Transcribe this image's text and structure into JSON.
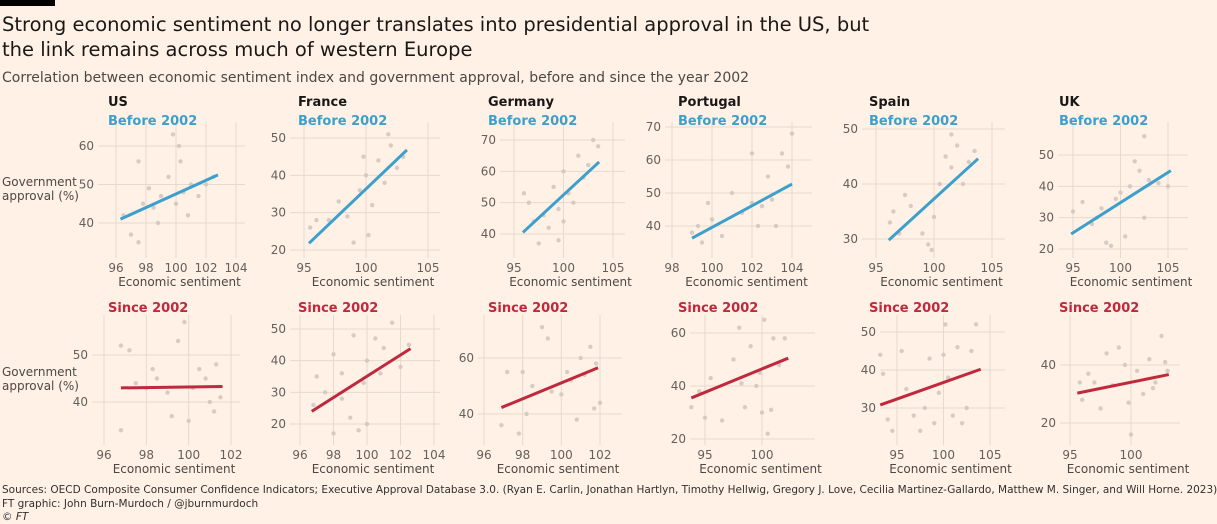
{
  "header": {
    "title": "Strong economic sentiment no longer translates into presidential approval in the US, but the link remains across much of western Europe",
    "subtitle": "Correlation between economic sentiment index and government approval, before and since the year 2002"
  },
  "footer": {
    "sources": "Sources: OECD Composite Consumer Confidence Indicators; Executive Approval Database 3.0. (Ryan E. Carlin, Jonathan Hartlyn, Timothy Hellwig, Gregory J. Love, Cecilia Martinez-Gallardo, Matthew M. Singer, and Will Horne. 2023)",
    "credit": "FT graphic: John Burn-Murdoch / @jburnmurdoch",
    "copyright": "© FT"
  },
  "colors": {
    "before": "#3d9fcc",
    "since": "#c0283d",
    "points": "#cfc6c0",
    "background": "#fff1e5"
  },
  "chart_data": [
    {
      "type": "scatter",
      "country": "US",
      "period": "Before 2002",
      "xlabel": "Economic sentiment",
      "ylabel": "Government approval (%)",
      "xticks": [
        96,
        98,
        100,
        102,
        104
      ],
      "yticks": [
        40,
        50,
        60
      ],
      "trend": {
        "x": [
          96.3,
          102.8
        ],
        "y": [
          41,
          52.5
        ]
      },
      "points": [
        [
          96.5,
          42
        ],
        [
          97,
          37
        ],
        [
          97.5,
          35
        ],
        [
          97.8,
          45
        ],
        [
          98.2,
          49
        ],
        [
          98.5,
          44
        ],
        [
          99,
          47
        ],
        [
          99.5,
          52
        ],
        [
          99.8,
          63
        ],
        [
          100,
          45
        ],
        [
          100.3,
          56
        ],
        [
          100.5,
          48
        ],
        [
          100.8,
          42
        ],
        [
          101,
          50
        ],
        [
          101.5,
          47
        ],
        [
          102,
          50
        ],
        [
          102.5,
          52
        ],
        [
          98.8,
          40
        ],
        [
          97.5,
          56
        ],
        [
          100.2,
          60
        ]
      ]
    },
    {
      "type": "scatter",
      "country": "France",
      "period": "Before 2002",
      "xlabel": "Economic sentiment",
      "xticks": [
        95,
        100,
        105
      ],
      "yticks": [
        20,
        30,
        40,
        50
      ],
      "trend": {
        "x": [
          95.4,
          103.3
        ],
        "y": [
          21.8,
          46.8
        ]
      },
      "points": [
        [
          95.5,
          26
        ],
        [
          96,
          28
        ],
        [
          97,
          28
        ],
        [
          97.8,
          33
        ],
        [
          98.5,
          29
        ],
        [
          99,
          22
        ],
        [
          99.5,
          36
        ],
        [
          99.8,
          45
        ],
        [
          100,
          40
        ],
        [
          100.5,
          32
        ],
        [
          101,
          44
        ],
        [
          101.5,
          38
        ],
        [
          102,
          48
        ],
        [
          102.5,
          42
        ],
        [
          103,
          45
        ],
        [
          100.2,
          24
        ],
        [
          101.8,
          51
        ]
      ]
    },
    {
      "type": "scatter",
      "country": "Germany",
      "period": "Before 2002",
      "xlabel": "Economic sentiment",
      "xticks": [
        95,
        100,
        105
      ],
      "yticks": [
        40,
        50,
        60,
        70
      ],
      "trend": {
        "x": [
          95.9,
          103.6
        ],
        "y": [
          40.5,
          63
        ]
      },
      "points": [
        [
          96,
          53
        ],
        [
          96.5,
          50
        ],
        [
          97,
          44
        ],
        [
          97.5,
          37
        ],
        [
          98,
          46
        ],
        [
          98.5,
          42
        ],
        [
          99,
          55
        ],
        [
          99.5,
          48
        ],
        [
          100,
          60
        ],
        [
          100,
          44
        ],
        [
          100.5,
          53
        ],
        [
          101,
          50
        ],
        [
          101.5,
          65
        ],
        [
          102,
          58
        ],
        [
          102.5,
          62
        ],
        [
          103,
          70
        ],
        [
          103.5,
          68
        ],
        [
          99.5,
          38
        ]
      ]
    },
    {
      "type": "scatter",
      "country": "Portugal",
      "period": "Before 2002",
      "xlabel": "Economic sentiment",
      "xticks": [
        98,
        100,
        102,
        104
      ],
      "yticks": [
        40,
        50,
        60,
        70
      ],
      "trend": {
        "x": [
          99,
          104
        ],
        "y": [
          36.3,
          52.7
        ]
      },
      "points": [
        [
          99,
          38
        ],
        [
          99.3,
          40
        ],
        [
          99.5,
          35
        ],
        [
          99.8,
          47
        ],
        [
          100,
          42
        ],
        [
          100.5,
          37
        ],
        [
          101,
          50
        ],
        [
          101.5,
          44
        ],
        [
          102,
          47
        ],
        [
          102.3,
          40
        ],
        [
          102.5,
          46
        ],
        [
          102.8,
          55
        ],
        [
          103,
          48
        ],
        [
          103.5,
          62
        ],
        [
          103.8,
          58
        ],
        [
          104,
          68
        ],
        [
          102,
          62
        ],
        [
          103.2,
          40
        ]
      ]
    },
    {
      "type": "scatter",
      "country": "Spain",
      "period": "Before 2002",
      "xlabel": "Economic sentiment",
      "xticks": [
        95,
        100,
        105
      ],
      "yticks": [
        30,
        40,
        50
      ],
      "trend": {
        "x": [
          96.1,
          103.8
        ],
        "y": [
          29.8,
          44.6
        ]
      },
      "points": [
        [
          96.2,
          33
        ],
        [
          96.5,
          35
        ],
        [
          97,
          31
        ],
        [
          97.5,
          38
        ],
        [
          98,
          36
        ],
        [
          99,
          31
        ],
        [
          99.5,
          29
        ],
        [
          100,
          34
        ],
        [
          100.5,
          40
        ],
        [
          101,
          45
        ],
        [
          101.5,
          43
        ],
        [
          102,
          47
        ],
        [
          102.5,
          40
        ],
        [
          103,
          44
        ],
        [
          103.5,
          46
        ],
        [
          101.5,
          49
        ],
        [
          99.8,
          28
        ]
      ]
    },
    {
      "type": "scatter",
      "country": "UK",
      "period": "Before 2002",
      "xlabel": "Economic sentiment",
      "xticks": [
        95,
        100,
        105
      ],
      "yticks": [
        20,
        30,
        40,
        50
      ],
      "trend": {
        "x": [
          94.8,
          105.3
        ],
        "y": [
          24.8,
          45
        ]
      },
      "points": [
        [
          95,
          32
        ],
        [
          96,
          35
        ],
        [
          97,
          28
        ],
        [
          97.5,
          30
        ],
        [
          98,
          33
        ],
        [
          98.5,
          22
        ],
        [
          99,
          21
        ],
        [
          99.5,
          36
        ],
        [
          100,
          38
        ],
        [
          100.5,
          24
        ],
        [
          101,
          40
        ],
        [
          101.5,
          48
        ],
        [
          102,
          45
        ],
        [
          102.5,
          56
        ],
        [
          103,
          42
        ],
        [
          104,
          41
        ],
        [
          105,
          40
        ],
        [
          102.5,
          30
        ]
      ]
    },
    {
      "type": "scatter",
      "period": "Since 2002",
      "xlabel": "Economic sentiment",
      "ylabel": "Government approval (%)",
      "xticks": [
        96,
        98,
        100,
        102
      ],
      "yticks": [
        40,
        50
      ],
      "trend": {
        "x": [
          96.8,
          101.6
        ],
        "y": [
          43,
          43.3
        ]
      },
      "points": [
        [
          96.8,
          34
        ],
        [
          96.8,
          52
        ],
        [
          97.2,
          51
        ],
        [
          97.5,
          44
        ],
        [
          98,
          43
        ],
        [
          98.3,
          47
        ],
        [
          98.5,
          45
        ],
        [
          99,
          42
        ],
        [
          99.2,
          37
        ],
        [
          99.5,
          53
        ],
        [
          99.8,
          57
        ],
        [
          100,
          36
        ],
        [
          100.2,
          43
        ],
        [
          100.5,
          47
        ],
        [
          100.8,
          45
        ],
        [
          101,
          40
        ],
        [
          101.3,
          48
        ],
        [
          101.5,
          41
        ],
        [
          101.2,
          38
        ]
      ]
    },
    {
      "type": "scatter",
      "period": "Since 2002",
      "xlabel": "Economic sentiment",
      "xticks": [
        96,
        98,
        100,
        102,
        104
      ],
      "yticks": [
        20,
        30,
        40,
        50
      ],
      "trend": {
        "x": [
          96.7,
          102.6
        ],
        "y": [
          24,
          43.8
        ]
      },
      "points": [
        [
          96.8,
          26
        ],
        [
          97,
          35
        ],
        [
          97.5,
          30
        ],
        [
          98,
          17
        ],
        [
          98,
          42
        ],
        [
          98.5,
          28
        ],
        [
          99,
          22
        ],
        [
          99.2,
          48
        ],
        [
          99.5,
          18
        ],
        [
          99.8,
          33
        ],
        [
          100,
          40
        ],
        [
          100,
          20
        ],
        [
          100.5,
          47
        ],
        [
          100.8,
          36
        ],
        [
          101,
          44
        ],
        [
          101.5,
          52
        ],
        [
          102,
          38
        ],
        [
          102.5,
          45
        ],
        [
          98.5,
          36
        ]
      ]
    },
    {
      "type": "scatter",
      "period": "Since 2002",
      "xlabel": "Economic sentiment",
      "xticks": [
        96,
        98,
        100,
        102
      ],
      "yticks": [
        40,
        60
      ],
      "trend": {
        "x": [
          96.9,
          101.9
        ],
        "y": [
          42.3,
          56.5
        ]
      },
      "points": [
        [
          96.9,
          36
        ],
        [
          97.2,
          55
        ],
        [
          97.8,
          33
        ],
        [
          98,
          55
        ],
        [
          98.2,
          40
        ],
        [
          98.5,
          50
        ],
        [
          99,
          71
        ],
        [
          99.3,
          67
        ],
        [
          99.5,
          48
        ],
        [
          100,
          47
        ],
        [
          100.3,
          55
        ],
        [
          100.5,
          52
        ],
        [
          100.8,
          38
        ],
        [
          101,
          60
        ],
        [
          101.2,
          54
        ],
        [
          101.5,
          64
        ],
        [
          101.8,
          58
        ],
        [
          102,
          44
        ],
        [
          101.7,
          42
        ]
      ]
    },
    {
      "type": "scatter",
      "period": "Since 2002",
      "xlabel": "Economic sentiment",
      "xticks": [
        95,
        100
      ],
      "yticks": [
        20,
        40,
        60
      ],
      "trend": {
        "x": [
          93.8,
          102.3
        ],
        "y": [
          35.5,
          50.5
        ]
      },
      "points": [
        [
          93.8,
          32
        ],
        [
          94.5,
          38
        ],
        [
          95,
          28
        ],
        [
          95.5,
          43
        ],
        [
          96.5,
          27
        ],
        [
          97.5,
          50
        ],
        [
          98,
          62
        ],
        [
          98.2,
          41
        ],
        [
          98.5,
          32
        ],
        [
          99,
          55
        ],
        [
          99.5,
          40
        ],
        [
          99.8,
          45
        ],
        [
          100,
          30
        ],
        [
          100.2,
          65
        ],
        [
          100.5,
          22
        ],
        [
          101,
          58
        ],
        [
          101.5,
          48
        ],
        [
          102,
          58
        ],
        [
          100.8,
          31
        ]
      ]
    },
    {
      "type": "scatter",
      "period": "Since 2002",
      "xlabel": "Economic sentiment",
      "xticks": [
        95,
        100,
        105
      ],
      "yticks": [
        30,
        40,
        50
      ],
      "trend": {
        "x": [
          93.2,
          104
        ],
        "y": [
          30.8,
          40.2
        ]
      },
      "points": [
        [
          93.2,
          44
        ],
        [
          93.5,
          39
        ],
        [
          94,
          27
        ],
        [
          94.5,
          24
        ],
        [
          95.5,
          45
        ],
        [
          96,
          35
        ],
        [
          96.8,
          28
        ],
        [
          97.5,
          24
        ],
        [
          98,
          30
        ],
        [
          98.5,
          43
        ],
        [
          99,
          26
        ],
        [
          99.5,
          34
        ],
        [
          100,
          44
        ],
        [
          100.2,
          52
        ],
        [
          100.5,
          38
        ],
        [
          101,
          28
        ],
        [
          101.5,
          46
        ],
        [
          102,
          26
        ],
        [
          102.5,
          30
        ],
        [
          103,
          45
        ],
        [
          103.5,
          52
        ]
      ]
    },
    {
      "type": "scatter",
      "period": "Since 2002",
      "xlabel": "Economic sentiment",
      "xticks": [
        95,
        100
      ],
      "yticks": [
        20,
        40
      ],
      "trend": {
        "x": [
          95.6,
          103.1
        ],
        "y": [
          30.3,
          36.7
        ]
      },
      "points": [
        [
          95.8,
          34
        ],
        [
          96,
          28
        ],
        [
          96.5,
          37
        ],
        [
          97,
          34
        ],
        [
          97.5,
          25
        ],
        [
          98,
          44
        ],
        [
          98.5,
          33
        ],
        [
          99,
          46
        ],
        [
          99.5,
          40
        ],
        [
          99.8,
          27
        ],
        [
          100,
          16
        ],
        [
          100.5,
          38
        ],
        [
          101,
          30
        ],
        [
          101.5,
          42
        ],
        [
          102,
          34
        ],
        [
          102.5,
          50
        ],
        [
          102.8,
          41
        ],
        [
          103,
          38
        ],
        [
          101.8,
          32
        ]
      ]
    }
  ]
}
